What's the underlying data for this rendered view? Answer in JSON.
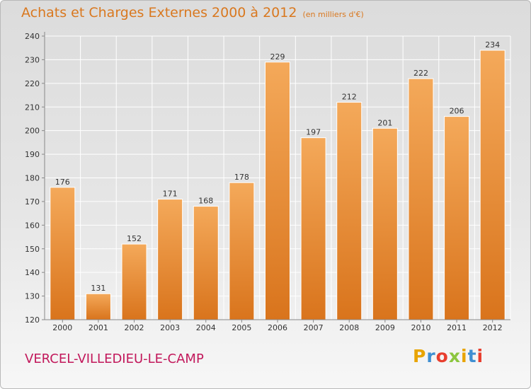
{
  "title": "Achats et Charges Externes 2000 à 2012",
  "unit": "(en milliers d'€)",
  "city": "VERCEL-VILLEDIEU-LE-CAMP",
  "logo": {
    "letters": [
      "P",
      "r",
      "o",
      "x",
      "i",
      "t",
      "i"
    ],
    "colors": [
      "#e8a400",
      "#3f8fd2",
      "#e83e2e",
      "#8cc63f",
      "#e8a400",
      "#3f8fd2",
      "#e83e2e"
    ]
  },
  "colors": {
    "bar_light": "#f4a95a",
    "bar_dark": "#d9741c",
    "title": "#d9781f",
    "city": "#c2185b"
  },
  "chart_data": {
    "type": "bar",
    "categories": [
      "2000",
      "2001",
      "2002",
      "2003",
      "2004",
      "2005",
      "2006",
      "2007",
      "2008",
      "2009",
      "2010",
      "2011",
      "2012"
    ],
    "values": [
      176,
      131,
      152,
      171,
      168,
      178,
      229,
      197,
      212,
      201,
      222,
      206,
      234
    ],
    "ylim": [
      120,
      240
    ],
    "yticks": [
      120,
      130,
      140,
      150,
      160,
      170,
      180,
      190,
      200,
      210,
      220,
      230,
      240
    ],
    "grid": true,
    "data_labels": true
  }
}
